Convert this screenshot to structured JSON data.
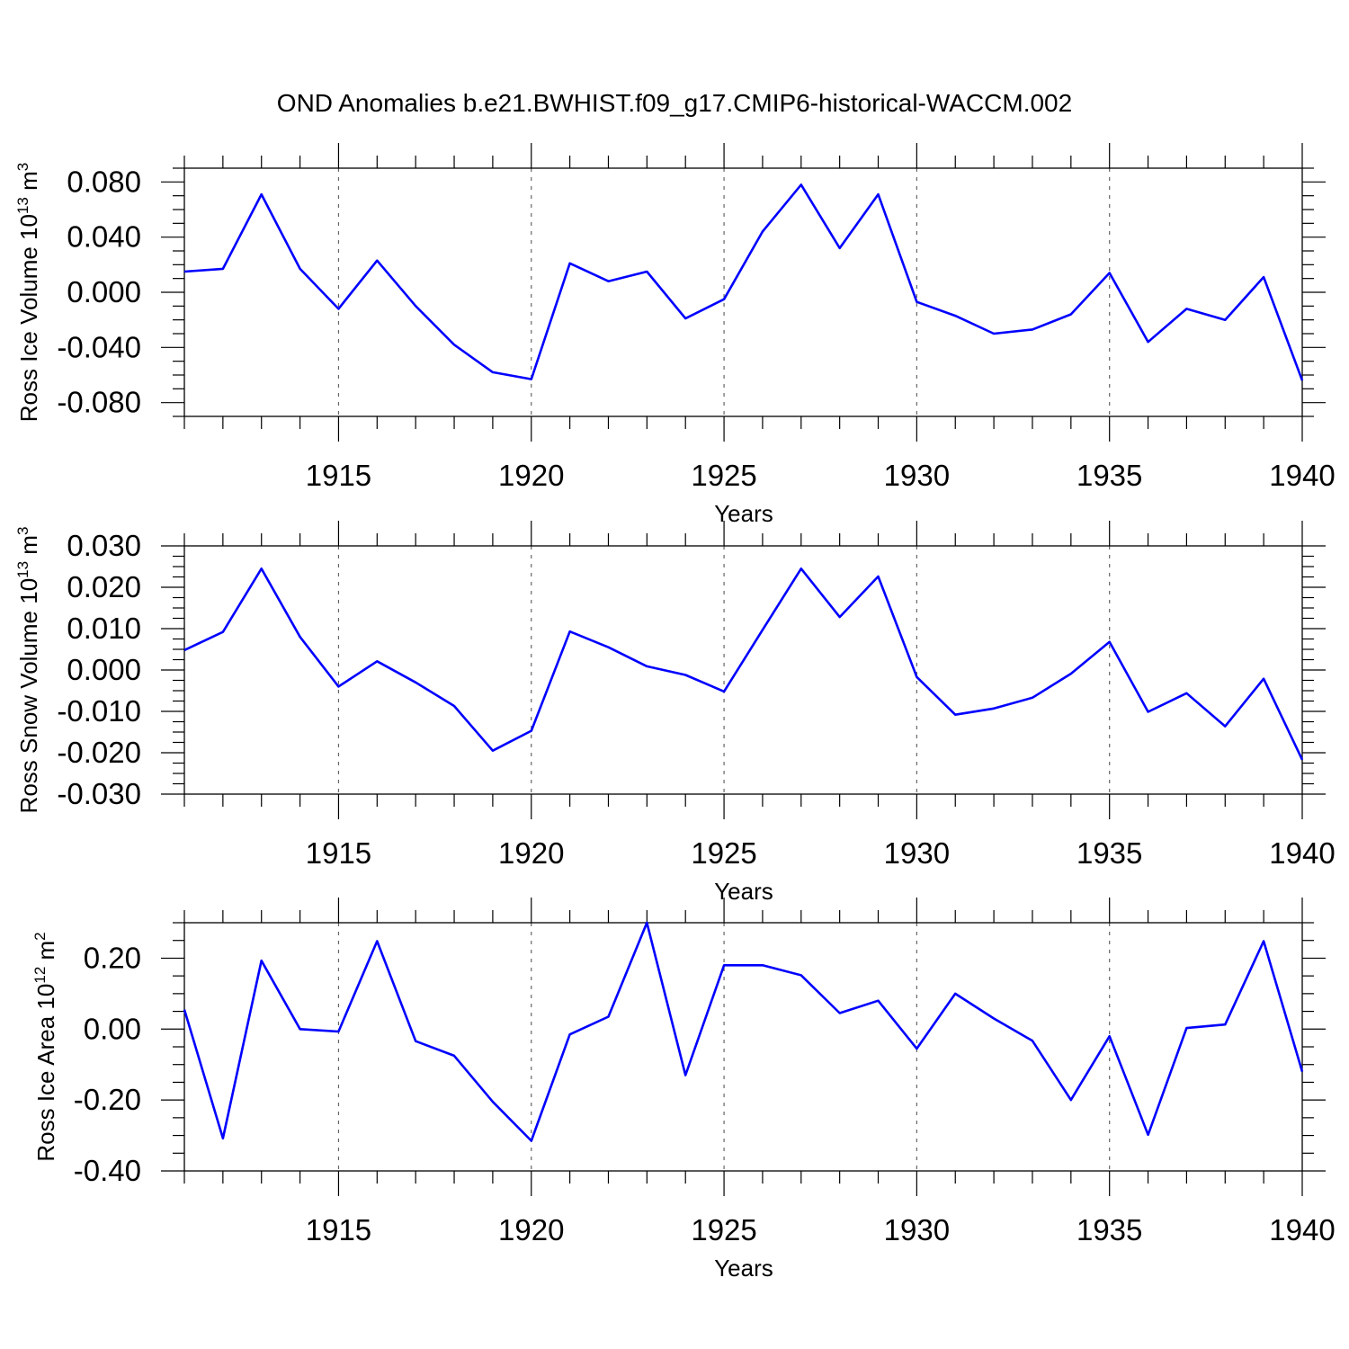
{
  "title": "OND Anomalies b.e21.BWHIST.f09_g17.CMIP6-historical-WACCM.002",
  "colors": {
    "line": "#0000ff",
    "grid": "#666666"
  },
  "chart_data": [
    {
      "type": "line",
      "ylabel": "Ross Ice Volume",
      "yunit_base": "10",
      "yunit_exp": "13",
      "yunit_suffix": "m",
      "yunit_suffix_exp": "3",
      "xlabel": "Years",
      "xlim": [
        1911,
        1940
      ],
      "ylim": [
        -0.09,
        0.09
      ],
      "xticks": [
        1915,
        1920,
        1925,
        1930,
        1935,
        1940
      ],
      "xtick_labels": [
        "1915",
        "1920",
        "1925",
        "1930",
        "1935",
        "1940"
      ],
      "yticks": [
        0.08,
        0.04,
        0.0,
        -0.04,
        -0.08
      ],
      "ytick_labels": [
        "0.080",
        "0.040",
        "0.000",
        "-0.040",
        "-0.080"
      ],
      "x": [
        1911,
        1912,
        1913,
        1914,
        1915,
        1916,
        1917,
        1918,
        1919,
        1920,
        1921,
        1922,
        1923,
        1924,
        1925,
        1926,
        1927,
        1928,
        1929,
        1930,
        1931,
        1932,
        1933,
        1934,
        1935,
        1936,
        1937,
        1938,
        1939,
        1940
      ],
      "y": [
        0.015,
        0.017,
        0.071,
        0.017,
        -0.012,
        0.023,
        -0.01,
        -0.038,
        -0.058,
        -0.063,
        0.021,
        0.008,
        0.015,
        -0.019,
        -0.005,
        0.044,
        0.078,
        0.032,
        0.071,
        -0.007,
        -0.017,
        -0.03,
        -0.027,
        -0.016,
        0.014,
        -0.036,
        -0.012,
        -0.02,
        0.011,
        -0.064
      ],
      "grid_x": "dashed"
    },
    {
      "type": "line",
      "ylabel": "Ross Snow Volume",
      "yunit_base": "10",
      "yunit_exp": "13",
      "yunit_suffix": "m",
      "yunit_suffix_exp": "3",
      "xlabel": "Years",
      "xlim": [
        1911,
        1940
      ],
      "ylim": [
        -0.03,
        0.03
      ],
      "xticks": [
        1915,
        1920,
        1925,
        1930,
        1935,
        1940
      ],
      "xtick_labels": [
        "1915",
        "1920",
        "1925",
        "1930",
        "1935",
        "1940"
      ],
      "yticks": [
        0.03,
        0.02,
        0.01,
        0.0,
        -0.01,
        -0.02,
        -0.03
      ],
      "ytick_labels": [
        "0.030",
        "0.020",
        "0.010",
        "0.000",
        "-0.010",
        "-0.020",
        "-0.030"
      ],
      "x": [
        1911,
        1912,
        1913,
        1914,
        1915,
        1916,
        1917,
        1918,
        1919,
        1920,
        1921,
        1922,
        1923,
        1924,
        1925,
        1926,
        1927,
        1928,
        1929,
        1930,
        1931,
        1932,
        1933,
        1934,
        1935,
        1936,
        1937,
        1938,
        1939,
        1940
      ],
      "y": [
        0.0048,
        0.0092,
        0.0245,
        0.008,
        -0.004,
        0.0021,
        -0.003,
        -0.0087,
        -0.0195,
        -0.0147,
        0.0093,
        0.0055,
        0.0009,
        -0.0012,
        -0.0052,
        0.0097,
        0.0245,
        0.0128,
        0.0226,
        -0.0017,
        -0.0108,
        -0.0093,
        -0.0067,
        -0.0009,
        0.0068,
        -0.0101,
        -0.0056,
        -0.0136,
        -0.0021,
        -0.0217
      ],
      "grid_x": "dashed"
    },
    {
      "type": "line",
      "ylabel": "Ross Ice Area",
      "yunit_base": "10",
      "yunit_exp": "12",
      "yunit_suffix": "m",
      "yunit_suffix_exp": "2",
      "xlabel": "Years",
      "xlim": [
        1911,
        1940
      ],
      "ylim": [
        -0.4,
        0.3
      ],
      "xticks": [
        1915,
        1920,
        1925,
        1930,
        1935,
        1940
      ],
      "xtick_labels": [
        "1915",
        "1920",
        "1925",
        "1930",
        "1935",
        "1940"
      ],
      "yticks": [
        0.2,
        0.0,
        -0.2,
        -0.4
      ],
      "ytick_labels": [
        "0.20",
        "0.00",
        "-0.20",
        "-0.40"
      ],
      "x": [
        1911,
        1912,
        1913,
        1914,
        1915,
        1916,
        1917,
        1918,
        1919,
        1920,
        1921,
        1922,
        1923,
        1924,
        1925,
        1926,
        1927,
        1928,
        1929,
        1930,
        1931,
        1932,
        1933,
        1934,
        1935,
        1936,
        1937,
        1938,
        1939,
        1940
      ],
      "y": [
        0.055,
        -0.308,
        0.193,
        0.0,
        -0.007,
        0.248,
        -0.034,
        -0.075,
        -0.205,
        -0.315,
        -0.015,
        0.035,
        0.3,
        -0.13,
        0.18,
        0.18,
        0.152,
        0.045,
        0.08,
        -0.055,
        0.1,
        0.03,
        -0.033,
        -0.2,
        -0.02,
        -0.298,
        0.003,
        0.013,
        0.248,
        -0.12
      ],
      "grid_x": "dashed"
    }
  ]
}
